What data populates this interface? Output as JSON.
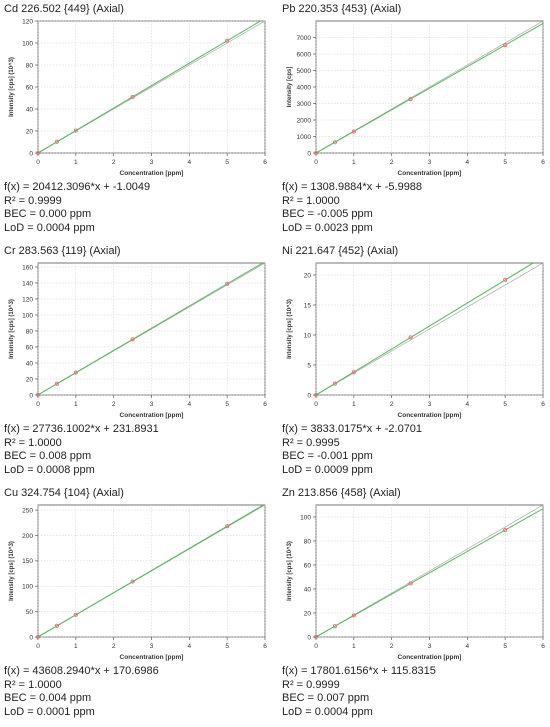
{
  "chart_data": [
    {
      "type": "scatter",
      "title": "Cd 226.502 {449} (Axial)",
      "xlabel": "Concentration [ppm]",
      "ylabel": "Intensity [cps] (10^3)",
      "xlim": [
        0,
        6
      ],
      "ylim": [
        0,
        120
      ],
      "xticks": [
        "0",
        "1",
        "2",
        "3",
        "4",
        "5",
        "6"
      ],
      "yticks": [
        "0",
        "20",
        "40",
        "60",
        "80",
        "100",
        "120"
      ],
      "grid": true,
      "x": [
        0,
        0.5,
        1,
        2.5,
        5
      ],
      "y": [
        0,
        10.2,
        20.4,
        51.0,
        102.1
      ],
      "fit": {
        "slope": 20.4123096,
        "intercept": -0.0010049
      },
      "equation": "f(x) = 20412.3096*x + -1.0049",
      "r2": "R² = 0.9999",
      "bec": "BEC = 0.000 ppm",
      "lod": "LoD = 0.0004 ppm"
    },
    {
      "type": "scatter",
      "title": "Pb 220.353 {453} (Axial)",
      "xlabel": "Concentration [ppm]",
      "ylabel": "Intensity [cps]",
      "xlim": [
        0,
        6
      ],
      "ylim": [
        0,
        8000
      ],
      "xticks": [
        "0",
        "1",
        "2",
        "3",
        "4",
        "5",
        "6"
      ],
      "yticks": [
        "0",
        "1000",
        "2000",
        "3000",
        "4000",
        "5000",
        "6000",
        "7000"
      ],
      "grid": true,
      "x": [
        0,
        0.5,
        1,
        2.5,
        5
      ],
      "y": [
        0,
        648,
        1303,
        3266,
        6539
      ],
      "fit": {
        "slope": 1308.9884,
        "intercept": -5.9988
      },
      "equation": "f(x) = 1308.9884*x + -5.9988",
      "r2": "R² = 1.0000",
      "bec": "BEC = -0.005 ppm",
      "lod": "LoD = 0.0023 ppm"
    },
    {
      "type": "scatter",
      "title": "Cr 283.563 {119} (Axial)",
      "xlabel": "Concentration [ppm]",
      "ylabel": "Intensity [cps] (10^3)",
      "xlim": [
        0,
        6
      ],
      "ylim": [
        0,
        165
      ],
      "xticks": [
        "0",
        "1",
        "2",
        "3",
        "4",
        "5",
        "6"
      ],
      "yticks": [
        "0",
        "20",
        "40",
        "60",
        "80",
        "100",
        "120",
        "140",
        "160"
      ],
      "grid": true,
      "x": [
        0,
        0.5,
        1,
        2.5,
        5
      ],
      "y": [
        0.23,
        14.1,
        28.0,
        69.6,
        138.9
      ],
      "fit": {
        "slope": 27.7361002,
        "intercept": 0.2318931
      },
      "equation": "f(x) = 27736.1002*x + 231.8931",
      "r2": "R² = 1.0000",
      "bec": "BEC = 0.008 ppm",
      "lod": "LoD = 0.0008 ppm"
    },
    {
      "type": "scatter",
      "title": "Ni 221.647 {452} (Axial)",
      "xlabel": "Concentration [ppm]",
      "ylabel": "Intensity [cps] (10^3)",
      "xlim": [
        0,
        6
      ],
      "ylim": [
        0,
        22
      ],
      "xticks": [
        "0",
        "1",
        "2",
        "3",
        "4",
        "5",
        "6"
      ],
      "yticks": [
        "0",
        "5",
        "10",
        "15",
        "20"
      ],
      "grid": true,
      "x": [
        0,
        0.5,
        1,
        2.5,
        5
      ],
      "y": [
        0,
        1.9,
        3.8,
        9.6,
        19.2
      ],
      "fit": {
        "slope": 3.8330175,
        "intercept": -0.0020701
      },
      "equation": "f(x) = 3833.0175*x + -2.0701",
      "r2": "R² = 0.9995",
      "bec": "BEC = -0.001 ppm",
      "lod": "LoD = 0.0009 ppm"
    },
    {
      "type": "scatter",
      "title": "Cu 324.754 {104} (Axial)",
      "xlabel": "Concentration [ppm]",
      "ylabel": "Intensity [cps] (10^3)",
      "xlim": [
        0,
        6
      ],
      "ylim": [
        0,
        260
      ],
      "xticks": [
        "0",
        "1",
        "2",
        "3",
        "4",
        "5",
        "6"
      ],
      "yticks": [
        "0",
        "50",
        "100",
        "150",
        "200",
        "250"
      ],
      "grid": true,
      "x": [
        0,
        0.5,
        1,
        2.5,
        5
      ],
      "y": [
        0.17,
        22.0,
        43.8,
        109.2,
        218.2
      ],
      "fit": {
        "slope": 43.608294,
        "intercept": 0.1706986
      },
      "equation": "f(x) = 43608.2940*x + 170.6986",
      "r2": "R² = 1.0000",
      "bec": "BEC = 0.004 ppm",
      "lod": "LoD = 0.0001 ppm"
    },
    {
      "type": "scatter",
      "title": "Zn 213.856 {458} (Axial)",
      "xlabel": "Concentration [ppm]",
      "ylabel": "Intensity [cps] (10^3)",
      "xlim": [
        0,
        6
      ],
      "ylim": [
        0,
        110
      ],
      "xticks": [
        "0",
        "1",
        "2",
        "3",
        "4",
        "5",
        "6"
      ],
      "yticks": [
        "0",
        "20",
        "40",
        "60",
        "80",
        "100"
      ],
      "grid": true,
      "x": [
        0,
        0.5,
        1,
        2.5,
        5
      ],
      "y": [
        0.12,
        9.0,
        17.9,
        44.6,
        89.1
      ],
      "fit": {
        "slope": 17.8016156,
        "intercept": 0.1158315
      },
      "equation": "f(x) = 17801.6156*x + 115.8315",
      "r2": "R² = 0.9999",
      "bec": "BEC = 0.007 ppm",
      "lod": "LoD = 0.0004 ppm"
    }
  ],
  "colors": {
    "fit_line": "#4caf50",
    "point": "#e57373",
    "grid": "#cfcfcf",
    "axis": "#555555",
    "identity": "#9e9e9e"
  }
}
